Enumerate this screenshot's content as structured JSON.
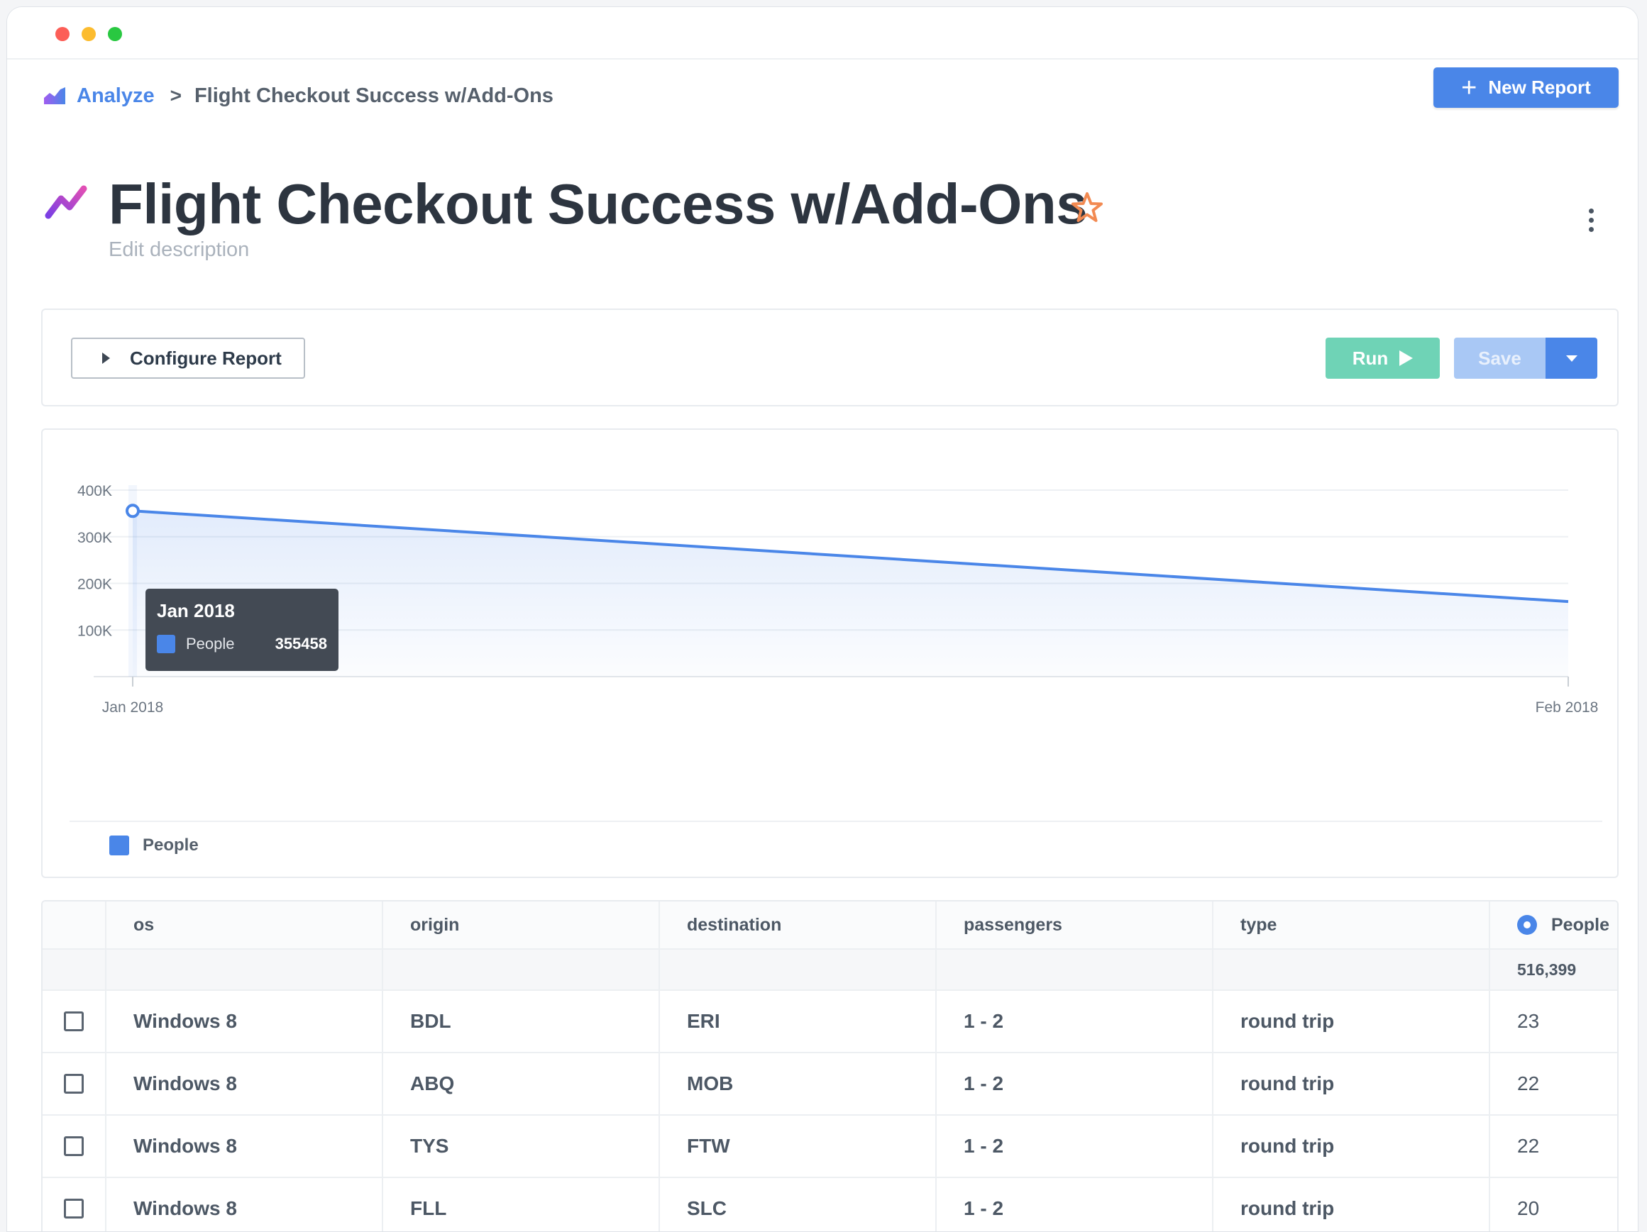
{
  "breadcrumb": {
    "root_label": "Analyze",
    "separator": ">",
    "current_label": "Flight Checkout Success w/Add-Ons"
  },
  "header": {
    "new_report_label": "New Report",
    "title": "Flight Checkout Success w/Add-Ons",
    "description_placeholder": "Edit description"
  },
  "config": {
    "configure_label": "Configure Report",
    "run_label": "Run",
    "save_label": "Save"
  },
  "colors": {
    "accent": "#4a86e8",
    "run": "#6fd3b6",
    "star": "#f28a52"
  },
  "tooltip": {
    "date": "Jan 2018",
    "series": "People",
    "value": "355458"
  },
  "chart_data": {
    "type": "area",
    "x": [
      "Jan 2018",
      "Feb 2018"
    ],
    "series": [
      {
        "name": "People",
        "values": [
          355458,
          161000
        ]
      }
    ],
    "ylim": [
      0,
      400000
    ],
    "y_ticks": [
      "400K",
      "300K",
      "200K",
      "100K"
    ],
    "y_tick_values": [
      400000,
      300000,
      200000,
      100000
    ],
    "x_ticks": [
      "Jan 2018",
      "Feb 2018"
    ],
    "legend": "bottom-left",
    "grid": true
  },
  "table": {
    "columns": [
      "os",
      "origin",
      "destination",
      "passengers",
      "type",
      "People"
    ],
    "total": "516,399",
    "rows": [
      [
        "Windows 8",
        "BDL",
        "ERI",
        "1 - 2",
        "round trip",
        "23"
      ],
      [
        "Windows 8",
        "ABQ",
        "MOB",
        "1 - 2",
        "round trip",
        "22"
      ],
      [
        "Windows 8",
        "TYS",
        "FTW",
        "1 - 2",
        "round trip",
        "22"
      ],
      [
        "Windows 8",
        "FLL",
        "SLC",
        "1 - 2",
        "round trip",
        "20"
      ]
    ]
  }
}
